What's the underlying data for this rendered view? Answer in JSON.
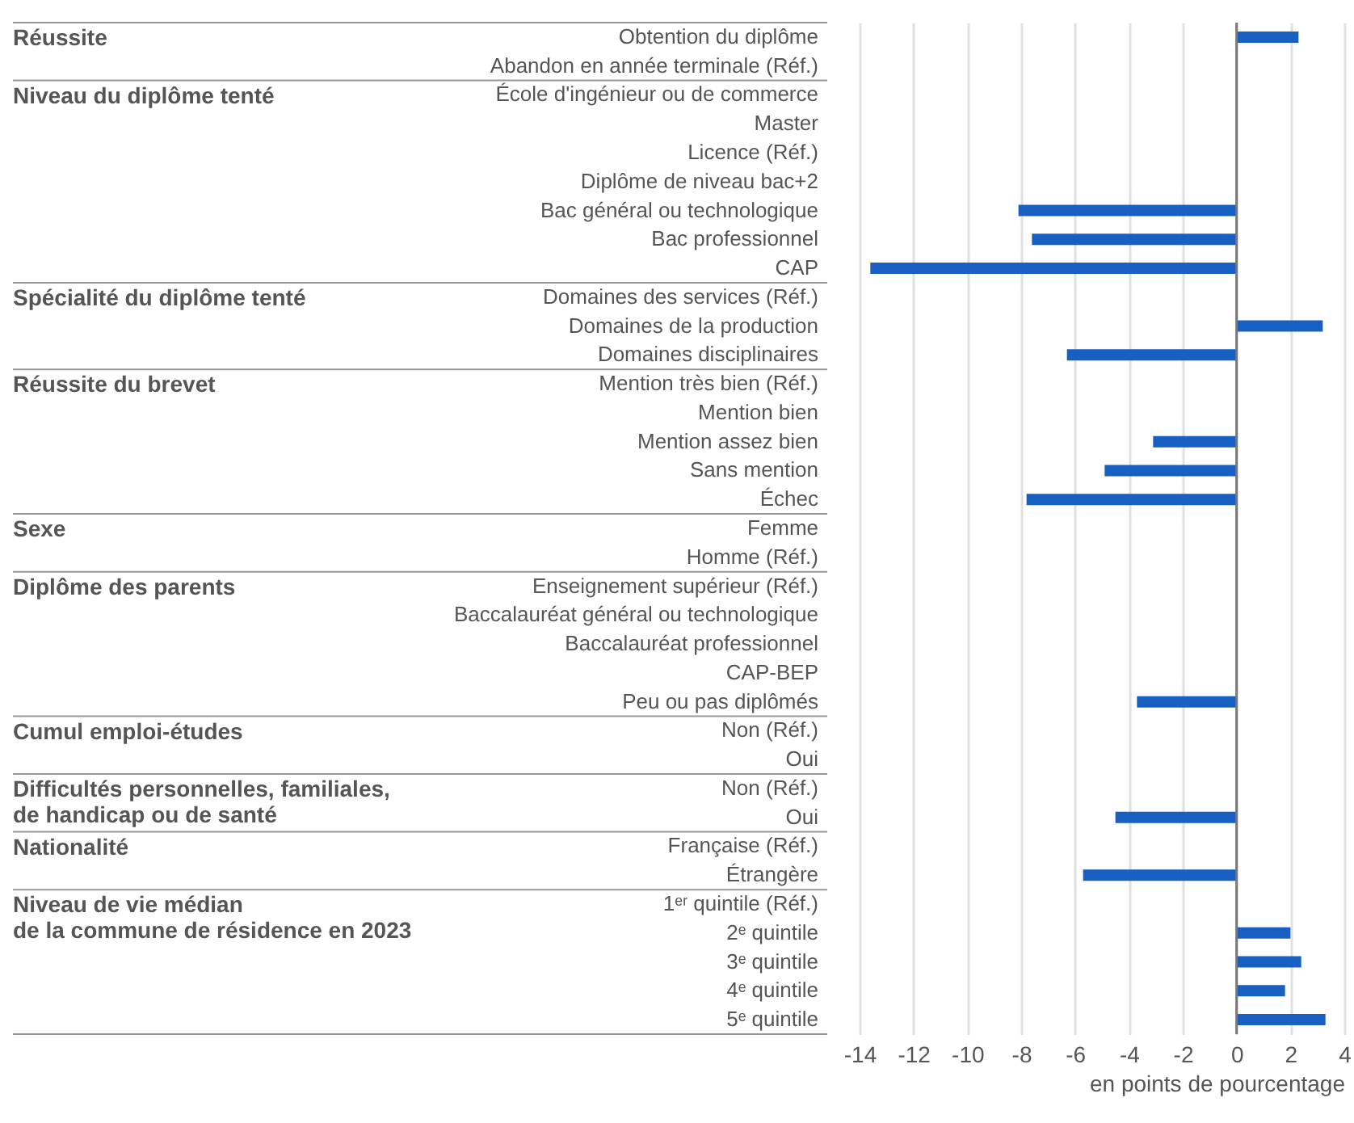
{
  "chart_data": {
    "type": "bar",
    "orientation": "horizontal",
    "xlabel": "en points de pourcentage",
    "categories": [
      "Obtention du diplôme",
      "Abandon en année terminale (Réf.)",
      "École d'ingénieur ou de commerce",
      "Master",
      "Licence (Réf.)",
      "Diplôme de niveau bac+2",
      "Bac général ou technologique",
      "Bac professionnel",
      "CAP",
      "Domaines des services (Réf.)",
      "Domaines de la production",
      "Domaines disciplinaires",
      "Mention très bien (Réf.)",
      "Mention bien",
      "Mention assez bien",
      "Sans mention",
      "Échec",
      "Femme",
      "Homme (Réf.)",
      "Enseignement supérieur (Réf.)",
      "Baccalauréat général ou technologique",
      "Baccalauréat professionnel",
      "CAP-BEP",
      "Peu ou pas diplômés",
      "Non (Réf.)",
      "Oui",
      "Non (Réf.)",
      "Oui",
      "Française (Réf.)",
      "Étrangère",
      "1ᵉʳ quintile (Réf.)",
      "2ᵉ quintile",
      "3ᵉ quintile",
      "4ᵉ quintile",
      "5ᵉ quintile"
    ],
    "values": [
      2.3,
      null,
      null,
      null,
      null,
      null,
      -8.1,
      -7.6,
      -13.6,
      null,
      3.2,
      -6.3,
      null,
      null,
      -3.1,
      -4.9,
      -7.8,
      null,
      null,
      null,
      null,
      null,
      null,
      -3.7,
      null,
      null,
      null,
      -4.5,
      null,
      -5.7,
      null,
      2.0,
      2.4,
      1.8,
      3.3
    ],
    "color": "#175fc1",
    "xlim": [
      -14,
      4
    ],
    "xticks": [
      -14,
      -12,
      -10,
      -8,
      -6,
      -4,
      -2,
      0,
      2,
      4
    ],
    "grid": "x",
    "ref_lines": [
      {
        "axis": "x",
        "value": 0,
        "color": "#777777"
      }
    ],
    "y2_categories": [
      "Réussite",
      null,
      "Niveau du diplôme tenté",
      null,
      null,
      null,
      null,
      null,
      null,
      "Spécialité du diplôme tenté",
      null,
      null,
      "Réussite du brevet",
      null,
      null,
      null,
      null,
      "Sexe",
      null,
      "Diplôme des parents",
      null,
      null,
      null,
      null,
      "Cumul emploi-études",
      null,
      "Difficultés personnelles, familiales,\n de handicap ou de santé",
      null,
      "Nationalité",
      null,
      "Niveau de vie médian\n de la commune de résidence en 2023",
      null,
      null,
      null,
      null
    ]
  }
}
